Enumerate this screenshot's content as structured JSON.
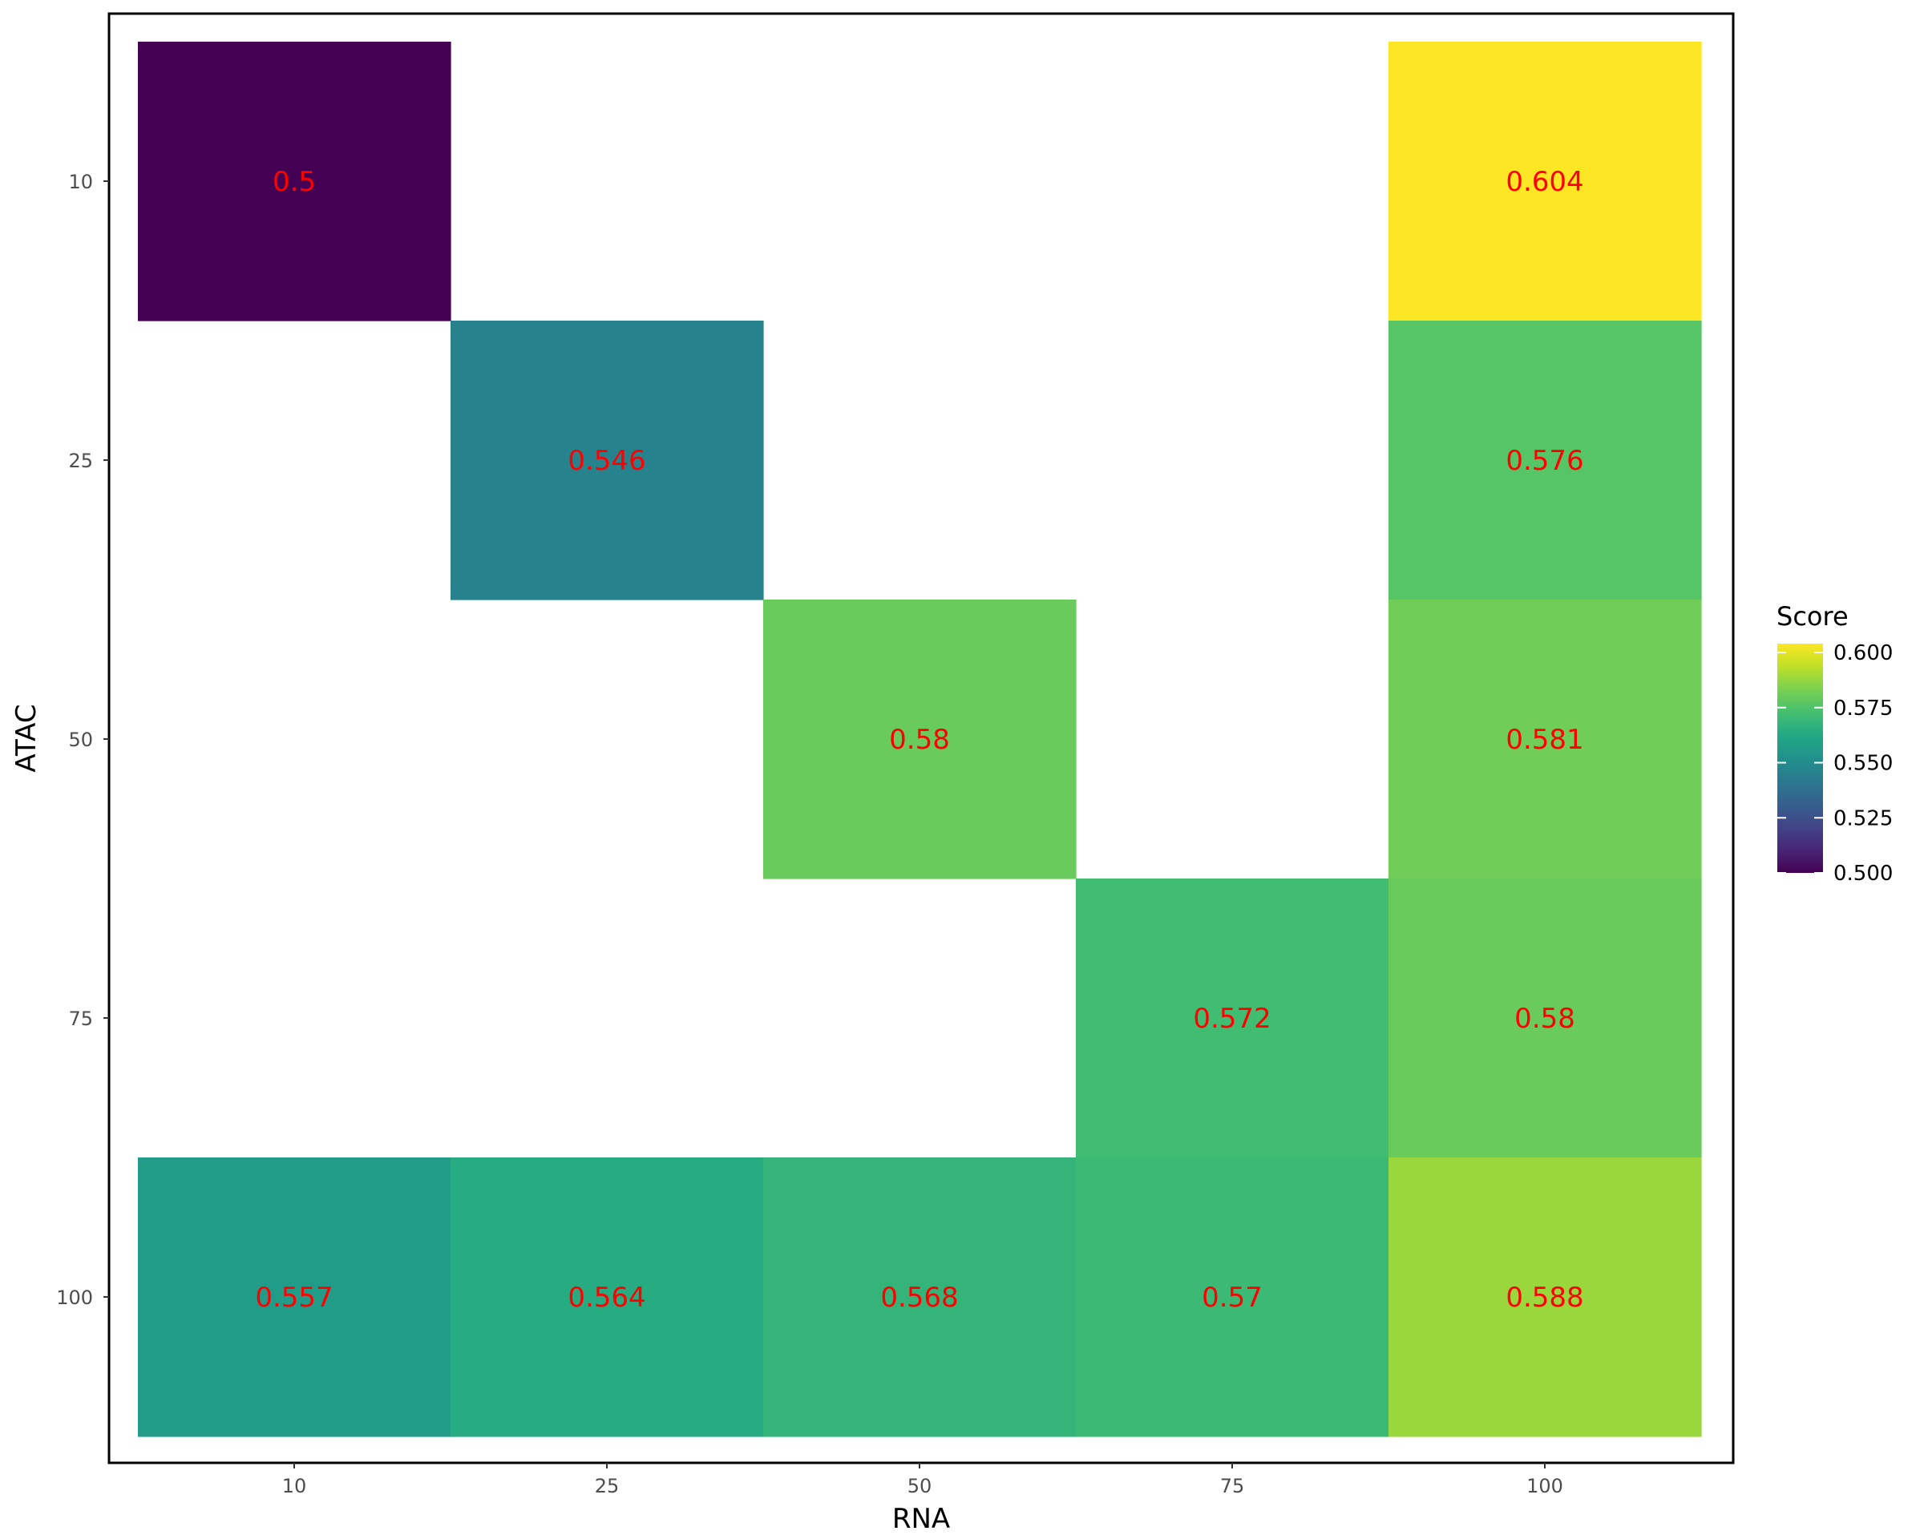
{
  "chart_data": {
    "type": "heatmap",
    "xlabel": "RNA",
    "ylabel": "ATAC",
    "x_categories": [
      "10",
      "25",
      "50",
      "75",
      "100"
    ],
    "y_categories": [
      "10",
      "25",
      "50",
      "75",
      "100"
    ],
    "cells": [
      {
        "x": "10",
        "y": "10",
        "value": 0.5,
        "label": "0.5"
      },
      {
        "x": "100",
        "y": "10",
        "value": 0.604,
        "label": "0.604"
      },
      {
        "x": "25",
        "y": "25",
        "value": 0.546,
        "label": "0.546"
      },
      {
        "x": "100",
        "y": "25",
        "value": 0.576,
        "label": "0.576"
      },
      {
        "x": "50",
        "y": "50",
        "value": 0.58,
        "label": "0.58"
      },
      {
        "x": "100",
        "y": "50",
        "value": 0.581,
        "label": "0.581"
      },
      {
        "x": "75",
        "y": "75",
        "value": 0.572,
        "label": "0.572"
      },
      {
        "x": "100",
        "y": "75",
        "value": 0.58,
        "label": "0.58"
      },
      {
        "x": "10",
        "y": "100",
        "value": 0.557,
        "label": "0.557"
      },
      {
        "x": "25",
        "y": "100",
        "value": 0.564,
        "label": "0.564"
      },
      {
        "x": "50",
        "y": "100",
        "value": 0.568,
        "label": "0.568"
      },
      {
        "x": "75",
        "y": "100",
        "value": 0.57,
        "label": "0.57"
      },
      {
        "x": "100",
        "y": "100",
        "value": 0.588,
        "label": "0.588"
      }
    ],
    "legend": {
      "title": "Score",
      "position": "right",
      "range": [
        0.5,
        0.604
      ],
      "ticks": [
        0.5,
        0.525,
        0.55,
        0.575,
        0.6
      ],
      "tick_labels": [
        "0.500",
        "0.525",
        "0.550",
        "0.575",
        "0.600"
      ],
      "colormap": "viridis"
    },
    "label_color": "#ff0000",
    "grid": false
  }
}
